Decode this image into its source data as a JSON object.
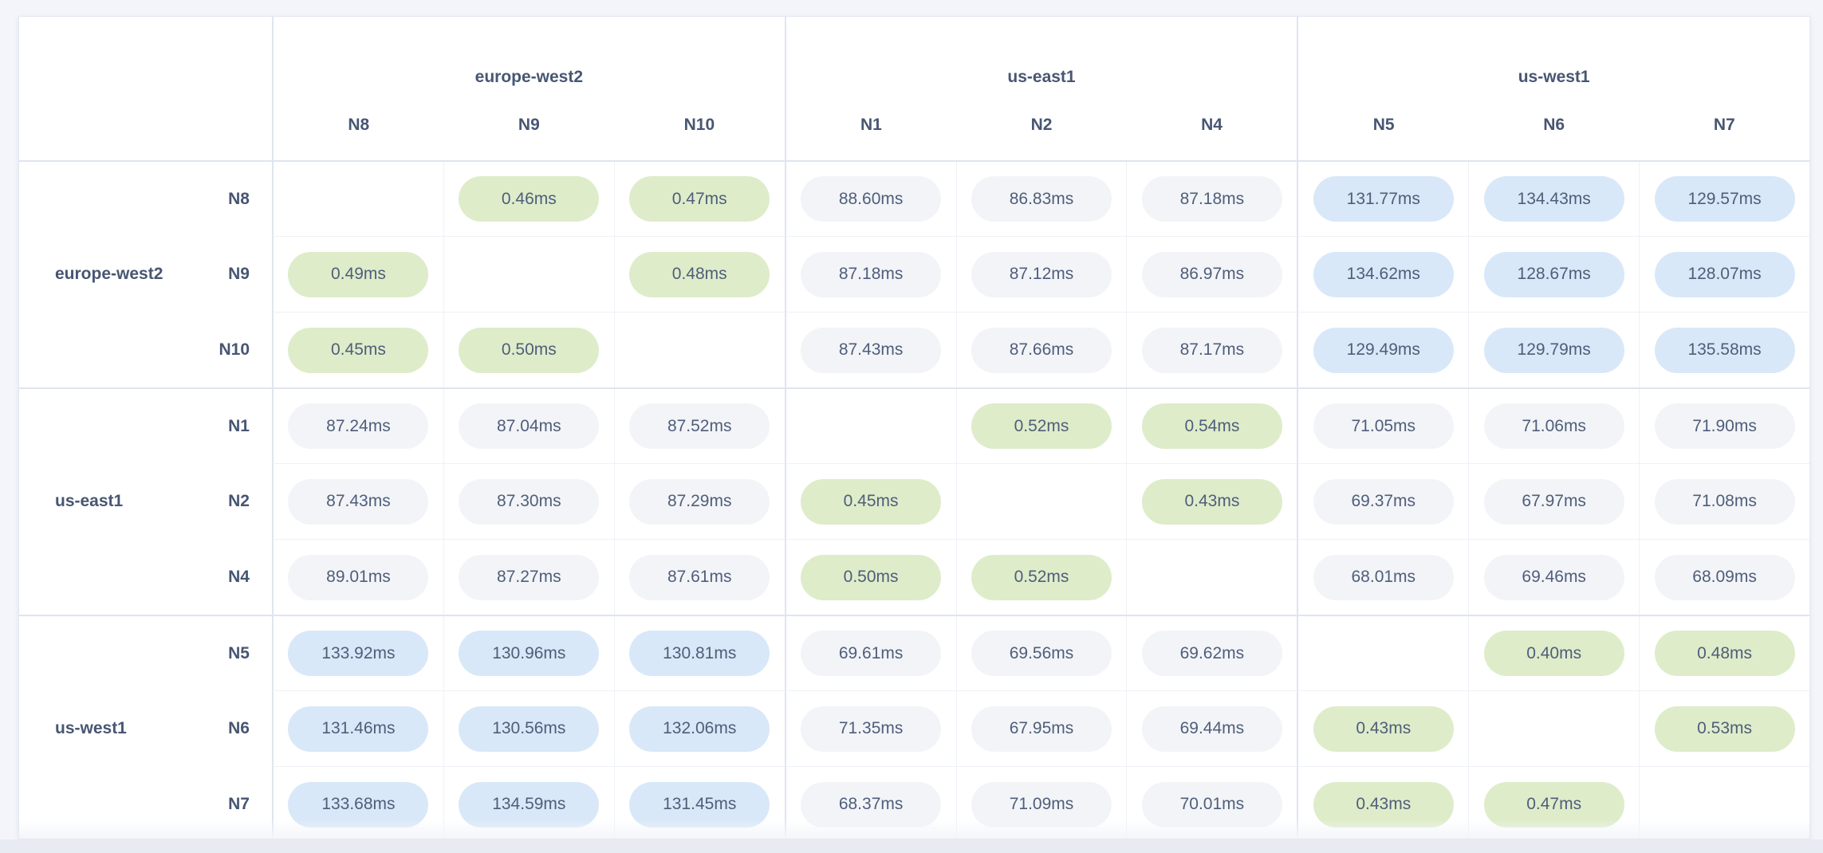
{
  "colors": {
    "low_latency_pill": "#deecca",
    "mid_latency_pill": "#f2f4f8",
    "high_latency_pill": "#d8e8f8",
    "header_text": "#475672",
    "value_text": "#4f5e79",
    "group_separator": "#dfe5ef",
    "inner_grid_line": "#eef1f6",
    "page_background": "#f3f5fa"
  },
  "chart_data": {
    "type": "heatmap",
    "unit": "ms",
    "legend_levels": {
      "low": "green pill, < 1ms (same region)",
      "mid": "gray pill, ~67-90ms",
      "high": "blue pill, ~128-136ms"
    },
    "column_groups": [
      {
        "region": "europe-west2",
        "nodes": [
          "N8",
          "N9",
          "N10"
        ]
      },
      {
        "region": "us-east1",
        "nodes": [
          "N1",
          "N2",
          "N4"
        ]
      },
      {
        "region": "us-west1",
        "nodes": [
          "N5",
          "N6",
          "N7"
        ]
      }
    ],
    "columns": [
      "N8",
      "N9",
      "N10",
      "N1",
      "N2",
      "N4",
      "N5",
      "N6",
      "N7"
    ],
    "rows": [
      {
        "region": "europe-west2",
        "node": "N8",
        "values": [
          "",
          "0.46ms",
          "0.47ms",
          "88.60ms",
          "86.83ms",
          "87.18ms",
          "131.77ms",
          "134.43ms",
          "129.57ms"
        ]
      },
      {
        "region": "europe-west2",
        "node": "N9",
        "values": [
          "0.49ms",
          "",
          "0.48ms",
          "87.18ms",
          "87.12ms",
          "86.97ms",
          "134.62ms",
          "128.67ms",
          "128.07ms"
        ]
      },
      {
        "region": "europe-west2",
        "node": "N10",
        "values": [
          "0.45ms",
          "0.50ms",
          "",
          "87.43ms",
          "87.66ms",
          "87.17ms",
          "129.49ms",
          "129.79ms",
          "135.58ms"
        ]
      },
      {
        "region": "us-east1",
        "node": "N1",
        "values": [
          "87.24ms",
          "87.04ms",
          "87.52ms",
          "",
          "0.52ms",
          "0.54ms",
          "71.05ms",
          "71.06ms",
          "71.90ms"
        ]
      },
      {
        "region": "us-east1",
        "node": "N2",
        "values": [
          "87.43ms",
          "87.30ms",
          "87.29ms",
          "0.45ms",
          "",
          "0.43ms",
          "69.37ms",
          "67.97ms",
          "71.08ms"
        ]
      },
      {
        "region": "us-east1",
        "node": "N4",
        "values": [
          "89.01ms",
          "87.27ms",
          "87.61ms",
          "0.50ms",
          "0.52ms",
          "",
          "68.01ms",
          "69.46ms",
          "68.09ms"
        ]
      },
      {
        "region": "us-west1",
        "node": "N5",
        "values": [
          "133.92ms",
          "130.96ms",
          "130.81ms",
          "69.61ms",
          "69.56ms",
          "69.62ms",
          "",
          "0.40ms",
          "0.48ms"
        ]
      },
      {
        "region": "us-west1",
        "node": "N6",
        "values": [
          "131.46ms",
          "130.56ms",
          "132.06ms",
          "71.35ms",
          "67.95ms",
          "69.44ms",
          "0.43ms",
          "",
          "0.53ms"
        ]
      },
      {
        "region": "us-west1",
        "node": "N7",
        "values": [
          "133.68ms",
          "134.59ms",
          "131.45ms",
          "68.37ms",
          "71.09ms",
          "70.01ms",
          "0.43ms",
          "0.47ms",
          ""
        ]
      }
    ]
  }
}
